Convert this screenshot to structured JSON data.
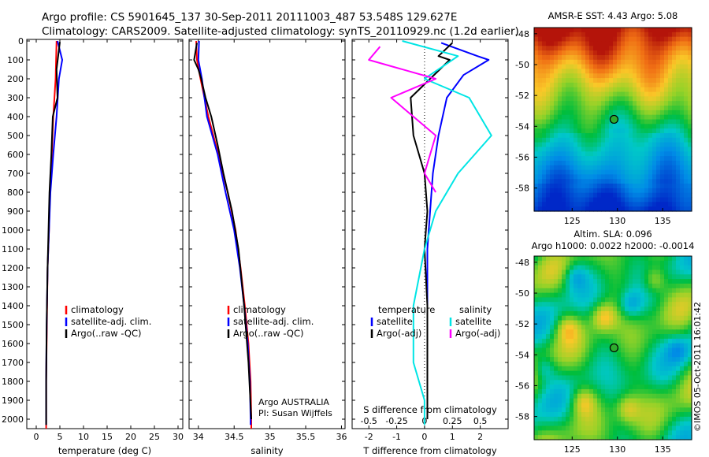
{
  "header": {
    "line1": "Argo profile: CS 5901645_137 30-Sep-2011 20111003_487 53.548S 129.627E",
    "line2": "Climatology: CARS2009. Satellite-adjusted climatology: synTS_20110929.nc (1.2d earlier)"
  },
  "colors": {
    "climatology": "#ff0000",
    "satellite": "#0000ff",
    "argo": "#000000",
    "sat_salinity": "#00e5e5",
    "argo_salinity": "#ff00ff"
  },
  "chart_data": [
    {
      "type": "line",
      "id": "temperature",
      "xlabel": "temperature (deg C)",
      "xlim": [
        -2,
        31
      ],
      "xticks": [
        0,
        5,
        10,
        15,
        20,
        25,
        30
      ],
      "ylim": [
        2050,
        0
      ],
      "yticks": [
        0,
        100,
        200,
        300,
        400,
        500,
        600,
        700,
        800,
        900,
        1000,
        1100,
        1200,
        1300,
        1400,
        1500,
        1600,
        1700,
        1800,
        1900,
        2000
      ],
      "legend": [
        "climatology",
        "satellite-adj. clim.",
        "Argo(..raw -QC)"
      ],
      "series": [
        {
          "name": "climatology",
          "color": "climatology",
          "x": [
            4.3,
            4.1,
            3.6,
            3.3,
            2.9,
            2.7,
            2.4,
            2.3,
            2.2,
            2.1,
            2.1,
            2.1
          ],
          "y": [
            0,
            200,
            400,
            600,
            800,
            1000,
            1200,
            1400,
            1600,
            1800,
            2000,
            2050
          ]
        },
        {
          "name": "satellite-adj. clim.",
          "color": "satellite",
          "x": [
            4.5,
            5.5,
            4.8,
            4.3,
            3.6,
            3.0,
            2.7,
            2.4,
            2.2,
            2.1,
            2.1
          ],
          "y": [
            0,
            100,
            200,
            400,
            600,
            800,
            1000,
            1200,
            1500,
            1800,
            2030
          ]
        },
        {
          "name": "Argo(..raw -QC)",
          "color": "argo",
          "x": [
            5.0,
            4.3,
            4.5,
            3.5,
            3.2,
            2.8,
            2.6,
            2.4,
            2.2,
            2.1,
            2.1
          ],
          "y": [
            5,
            150,
            300,
            400,
            600,
            800,
            1000,
            1200,
            1500,
            1800,
            2030
          ]
        }
      ]
    },
    {
      "type": "line",
      "id": "salinity",
      "xlabel": "salinity",
      "xlim": [
        33.87,
        36.05
      ],
      "xticks": [
        34,
        34.5,
        35,
        35.5,
        36
      ],
      "xtick_labels": [
        "34",
        "34.5",
        "35",
        "35.5",
        "36"
      ],
      "ylim": [
        2050,
        0
      ],
      "legend": [
        "climatology",
        "satellite-adj. clim.",
        "Argo(..raw -QC)"
      ],
      "annotations": [
        "Argo AUSTRALIA",
        "PI: Susan Wijffels"
      ],
      "series": [
        {
          "name": "climatology",
          "color": "climatology",
          "x": [
            33.97,
            33.98,
            34.03,
            34.14,
            34.28,
            34.41,
            34.52,
            34.59,
            34.65,
            34.7,
            34.73,
            34.74,
            34.74
          ],
          "y": [
            0,
            100,
            200,
            400,
            600,
            800,
            1000,
            1200,
            1400,
            1600,
            1800,
            2000,
            2050
          ]
        },
        {
          "name": "satellite-adj. clim.",
          "color": "satellite",
          "x": [
            34.01,
            34.0,
            34.05,
            34.12,
            34.27,
            34.38,
            34.5,
            34.58,
            34.64,
            34.69,
            34.72,
            34.73,
            34.73
          ],
          "y": [
            0,
            100,
            200,
            400,
            600,
            800,
            1000,
            1200,
            1400,
            1600,
            1800,
            2000,
            2030
          ]
        },
        {
          "name": "Argo(..raw -QC)",
          "color": "argo",
          "x": [
            33.98,
            33.94,
            34.0,
            34.04,
            34.1,
            34.18,
            34.27,
            34.35,
            34.47,
            34.56,
            34.64,
            34.7,
            34.74
          ],
          "y": [
            10,
            100,
            150,
            200,
            300,
            400,
            550,
            700,
            900,
            1100,
            1400,
            1700,
            2000
          ]
        }
      ]
    },
    {
      "type": "line",
      "id": "difference",
      "xlabel": "T difference from climatology",
      "xlabel2": "S difference from climatology",
      "xlim": [
        -2.6,
        3.0
      ],
      "xticks": [
        -2,
        -1,
        0,
        1,
        2
      ],
      "xticks2": [
        -0.5,
        -0.25,
        0,
        0.25,
        0.5
      ],
      "ylim": [
        2050,
        0
      ],
      "legend_groups": {
        "temperature": [
          "satellite",
          "Argo(-adj)"
        ],
        "salinity": [
          "satellite",
          "Argo(-adj)"
        ]
      },
      "series": [
        {
          "name": "temperature satellite",
          "color": "satellite",
          "x": [
            0.6,
            1.9,
            2.3,
            1.4,
            0.8,
            0.5,
            0.3,
            0.2,
            0.1,
            0.1,
            0.1,
            0.1,
            0.1
          ],
          "y": [
            10,
            80,
            100,
            180,
            300,
            500,
            700,
            900,
            1100,
            1400,
            1600,
            1800,
            2000
          ]
        },
        {
          "name": "temperature Argo(-adj)",
          "color": "argo",
          "x": [
            1.0,
            0.5,
            0.9,
            0.2,
            -0.5,
            -0.4,
            0.0,
            0.1,
            0.0,
            0.1,
            0.1,
            0.1,
            0.1
          ],
          "y": [
            10,
            80,
            100,
            200,
            300,
            500,
            700,
            900,
            1100,
            1400,
            1600,
            1800,
            2000
          ]
        },
        {
          "name": "salinity satellite",
          "color": "sat_salinity",
          "x": [
            -0.2,
            0.3,
            0.0,
            0.4,
            0.6,
            0.3,
            0.1,
            0.0,
            -0.1,
            -0.1,
            0.0,
            0.0
          ],
          "y": [
            0,
            80,
            200,
            300,
            500,
            700,
            900,
            1100,
            1400,
            1700,
            1900,
            2030
          ]
        },
        {
          "name": "salinity Argo(-adj)",
          "color": "argo_salinity",
          "x": [
            -0.4,
            -0.5,
            0.1,
            -0.3,
            0.1,
            0.0,
            0.1
          ],
          "y": [
            30,
            100,
            200,
            300,
            500,
            700,
            800
          ]
        }
      ]
    },
    {
      "type": "heatmap",
      "id": "sst_map",
      "title": "AMSR-E SST: 4.43 Argo: 5.08",
      "xlim": [
        120.8,
        138.2
      ],
      "ylim": [
        -59.5,
        -47.6
      ],
      "xticks": [
        125,
        130,
        135
      ],
      "yticks": [
        -48,
        -50,
        -52,
        -54,
        -56,
        -58
      ],
      "marker": {
        "x": 129.627,
        "y": -53.548
      }
    },
    {
      "type": "heatmap",
      "id": "sla_map",
      "title": "Altim. SLA: 0.096",
      "subtitle": "Argo h1000: 0.0022 h2000: -0.0014",
      "xlim": [
        120.8,
        138.2
      ],
      "ylim": [
        -59.5,
        -47.6
      ],
      "xticks": [
        125,
        130,
        135
      ],
      "yticks": [
        -48,
        -50,
        -52,
        -54,
        -56,
        -58
      ],
      "marker": {
        "x": 129.627,
        "y": -53.548
      }
    }
  ],
  "footer": {
    "stamp": "©IMOS 05-Oct-2011 16:01:42"
  }
}
